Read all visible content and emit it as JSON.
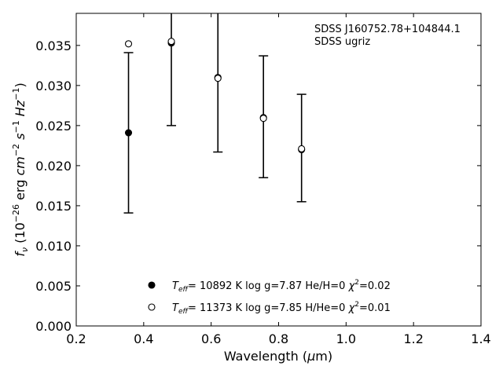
{
  "chart_data": {
    "type": "scatter",
    "xlabel": "Wavelength (μm)",
    "ylabel": "f_ν (10^-26 erg cm^-2 s^-1 Hz^-1)",
    "xlim": [
      0.2,
      1.4
    ],
    "ylim": [
      0.0,
      0.039
    ],
    "x_ticks": [
      "0.2",
      "0.4",
      "0.6",
      "0.8",
      "1.0",
      "1.2",
      "1.4"
    ],
    "y_ticks": [
      "0.000",
      "0.005",
      "0.010",
      "0.015",
      "0.020",
      "0.025",
      "0.030",
      "0.035"
    ],
    "annotations": [
      "SDSS J160752.78+104844.1",
      "SDSS ugriz"
    ],
    "observed": {
      "x": [
        0.355,
        0.482,
        0.62,
        0.755,
        0.868
      ],
      "y": [
        0.0241,
        0.0355,
        0.0311,
        0.0261,
        0.0222
      ],
      "yerr": [
        0.01,
        0.0105,
        0.0094,
        0.0076,
        0.0067
      ]
    },
    "series": [
      {
        "name": "T_eff= 10892 K  log g=7.87  He/H=0  χ²=0.02",
        "marker": "filled",
        "x": [
          0.355,
          0.482,
          0.62,
          0.755,
          0.868
        ],
        "y": [
          0.0241,
          0.0353,
          0.031,
          0.026,
          0.022
        ]
      },
      {
        "name": "T_eff= 11373 K  log g=7.85  H/He=0  χ²=0.01",
        "marker": "open",
        "x": [
          0.355,
          0.482,
          0.62,
          0.755,
          0.868
        ],
        "y": [
          0.0352,
          0.0355,
          0.0309,
          0.0259,
          0.0221
        ]
      }
    ],
    "legend": [
      {
        "parts": [
          "T",
          "eff",
          "= 10892 K  log g=7.87  He/H=0  χ",
          "2",
          "=0.02"
        ]
      },
      {
        "parts": [
          "T",
          "eff",
          "= 11373 K  log g=7.85  H/He=0  χ",
          "2",
          "=0.01"
        ]
      }
    ],
    "legend_location": "lower-center",
    "grid": false
  }
}
